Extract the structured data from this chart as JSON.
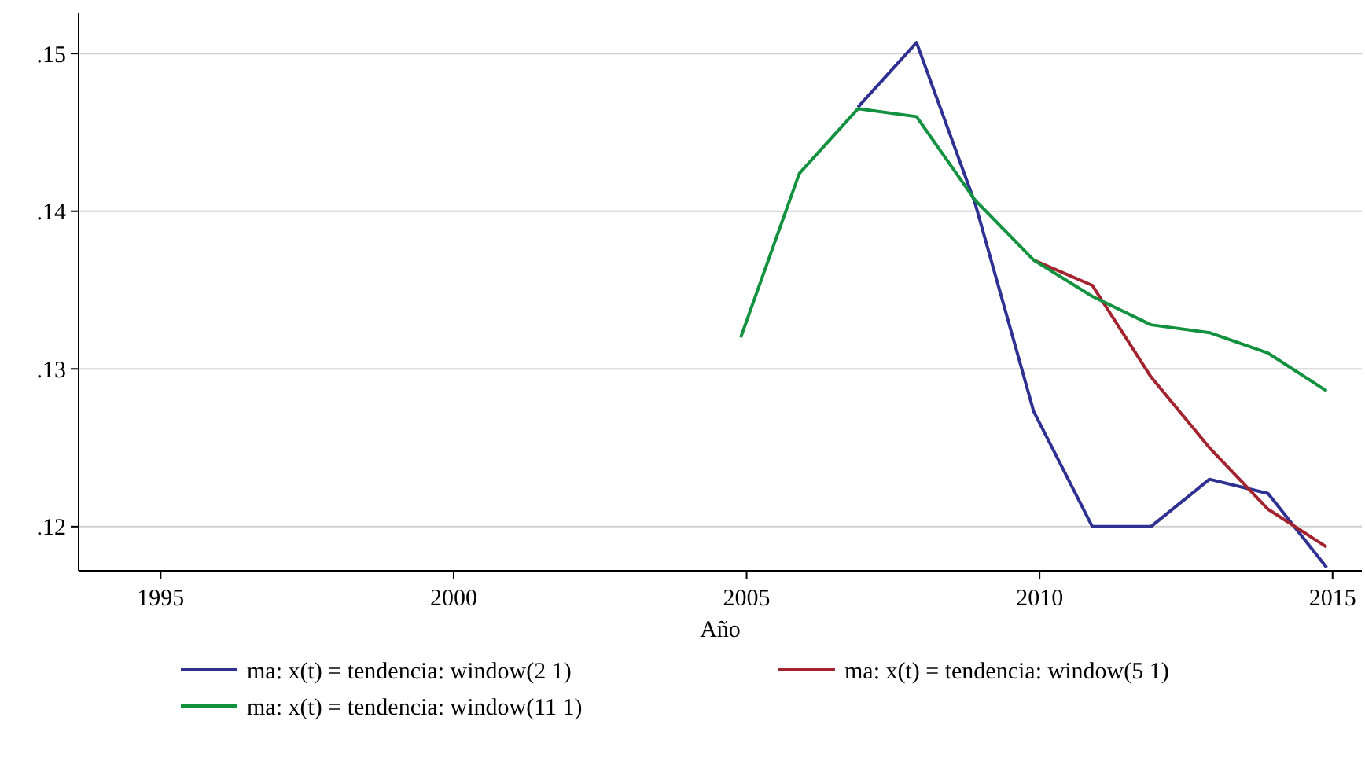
{
  "chart_data": {
    "type": "line",
    "xlabel": "Año",
    "x": [
      2004.9,
      2005.9,
      2006.9,
      2007.9,
      2008.9,
      2009.9,
      2010.9,
      2011.9,
      2012.9,
      2013.9,
      2014.9
    ],
    "series": [
      {
        "name": "ma: x(t) = tendencia: window(2 1)",
        "color": "#2e3192",
        "values": [
          null,
          null,
          0.1466,
          0.1507,
          0.1405,
          0.1273,
          0.12,
          0.12,
          0.123,
          0.1221,
          0.1174
        ]
      },
      {
        "name": "ma: x(t) = tendencia: window(5 1)",
        "color": "#a3232f",
        "values": [
          null,
          null,
          null,
          null,
          null,
          0.1369,
          0.1353,
          0.1295,
          0.125,
          0.1211,
          0.1187
        ]
      },
      {
        "name": "ma: x(t) = tendencia: window(11 1)",
        "color": "#12913f",
        "values": [
          0.132,
          0.1424,
          0.1465,
          0.146,
          0.1407,
          0.1369,
          0.1346,
          0.1328,
          0.1323,
          0.131,
          0.1286
        ]
      }
    ],
    "xlim": [
      1993.6,
      2015.5
    ],
    "xticks": [
      1995,
      2000,
      2005,
      2010,
      2015
    ],
    "ylim": [
      0.1172,
      0.1526
    ],
    "yticks": [
      {
        "value": 0.12,
        "label": ".12"
      },
      {
        "value": 0.13,
        "label": ".13"
      },
      {
        "value": 0.14,
        "label": ".14"
      },
      {
        "value": 0.15,
        "label": ".15"
      }
    ],
    "grid": "y",
    "legend": "bottom",
    "marker": "none",
    "line_style": "solid"
  }
}
